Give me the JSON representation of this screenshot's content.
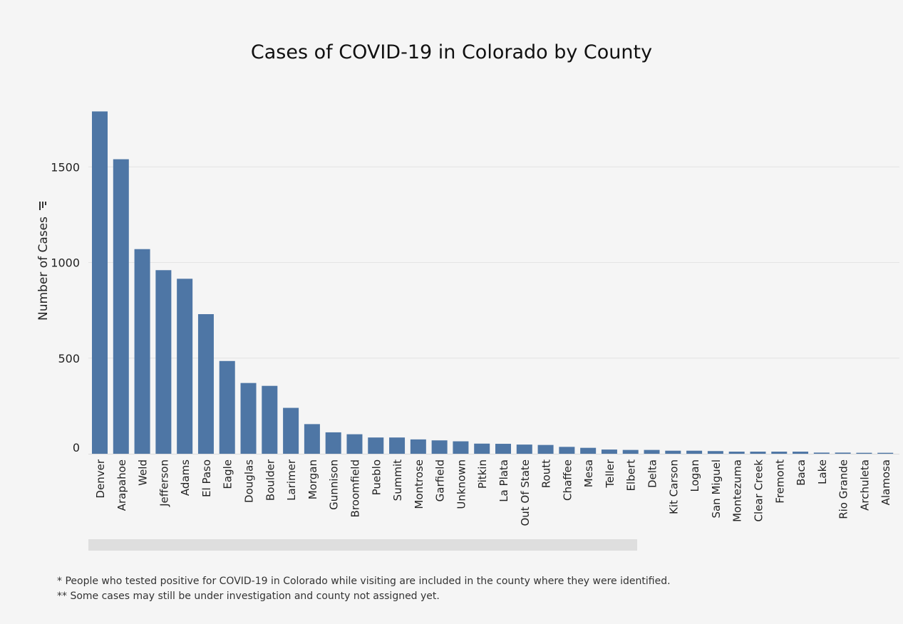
{
  "chart_data": {
    "type": "bar",
    "title": "Cases of COVID-19 in Colorado by County",
    "xlabel": "",
    "ylabel": "Number of Cases",
    "ylabel_icon": "sort-icon",
    "ylim": [
      0,
      1840
    ],
    "yticks": [
      0,
      500,
      1000,
      1500
    ],
    "grid": true,
    "bar_color": "#4e76a5",
    "categories": [
      "Denver",
      "Arapahoe",
      "Weld",
      "Jefferson",
      "Adams",
      "El Paso",
      "Eagle",
      "Douglas",
      "Boulder",
      "Larimer",
      "Morgan",
      "Gunnison",
      "Broomfield",
      "Pueblo",
      "Summit",
      "Montrose",
      "Garfield",
      "Unknown",
      "Pitkin",
      "La Plata",
      "Out Of State",
      "Routt",
      "Chaffee",
      "Mesa",
      "Teller",
      "Elbert",
      "Delta",
      "Kit Carson",
      "Logan",
      "San Miguel",
      "Montezuma",
      "Clear Creek",
      "Fremont",
      "Baca",
      "Lake",
      "Rio Grande",
      "Archuleta",
      "Alamosa"
    ],
    "values": [
      1790,
      1540,
      1070,
      960,
      915,
      730,
      485,
      370,
      355,
      240,
      155,
      112,
      102,
      85,
      85,
      75,
      70,
      65,
      53,
      52,
      48,
      46,
      36,
      31,
      22,
      20,
      20,
      16,
      16,
      14,
      11,
      11,
      11,
      11,
      6,
      6,
      5,
      5
    ]
  },
  "footnotes": [
    "* People who tested positive for COVID-19 in Colorado while visiting are included in the county where they were identified.",
    "** Some cases may still be under investigation and county not assigned yet."
  ]
}
